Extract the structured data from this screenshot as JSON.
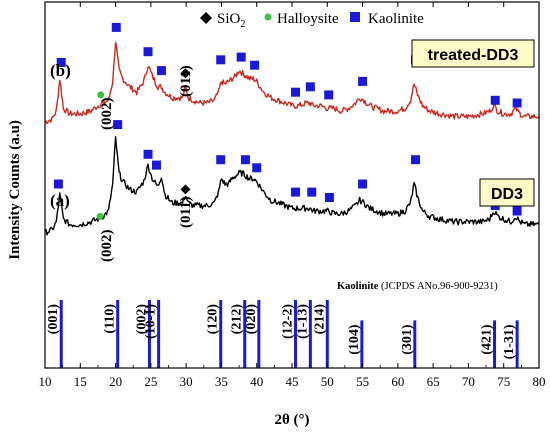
{
  "chart_data": {
    "type": "line",
    "xlabel": "2θ (°)",
    "ylabel": "Intensity Counts (a.u)",
    "xlim": [
      10,
      80
    ],
    "xticks": [
      10,
      15,
      20,
      25,
      30,
      35,
      40,
      45,
      50,
      55,
      60,
      65,
      70,
      75,
      80
    ],
    "y_tick_labels": false,
    "legend": [
      {
        "symbol": "diamond",
        "label": "SiO",
        "subscript": "2",
        "color": "#000000"
      },
      {
        "symbol": "circle",
        "label": "Halloysite",
        "color": "#3cc43c"
      },
      {
        "symbol": "square",
        "label": "Kaolinite",
        "color": "#1a1ad6"
      }
    ],
    "legend_position": "top-center",
    "series": [
      {
        "name": "treated-DD3",
        "panel_label": "(b)",
        "color": "#c8281e",
        "baseline": 0.62,
        "points": [
          [
            10,
            0.63
          ],
          [
            11,
            0.64
          ],
          [
            11.6,
            0.67
          ],
          [
            12.1,
            0.79
          ],
          [
            12.6,
            0.68
          ],
          [
            13.5,
            0.66
          ],
          [
            15,
            0.66
          ],
          [
            16.5,
            0.67
          ],
          [
            17.5,
            0.69
          ],
          [
            18.3,
            0.7
          ],
          [
            19,
            0.71
          ],
          [
            19.6,
            0.78
          ],
          [
            20.0,
            0.93
          ],
          [
            20.5,
            0.82
          ],
          [
            21,
            0.79
          ],
          [
            22,
            0.76
          ],
          [
            23,
            0.74
          ],
          [
            24,
            0.78
          ],
          [
            24.6,
            0.84
          ],
          [
            25.2,
            0.8
          ],
          [
            26,
            0.76
          ],
          [
            26.5,
            0.76
          ],
          [
            27,
            0.74
          ],
          [
            28,
            0.72
          ],
          [
            29,
            0.72
          ],
          [
            29.5,
            0.72
          ],
          [
            29.9,
            0.76
          ],
          [
            30.3,
            0.72
          ],
          [
            31,
            0.71
          ],
          [
            32,
            0.7
          ],
          [
            33,
            0.7
          ],
          [
            34,
            0.71
          ],
          [
            34.6,
            0.74
          ],
          [
            35.0,
            0.78
          ],
          [
            35.5,
            0.77
          ],
          [
            36,
            0.78
          ],
          [
            36.5,
            0.79
          ],
          [
            37,
            0.8
          ],
          [
            37.5,
            0.82
          ],
          [
            38,
            0.81
          ],
          [
            38.5,
            0.8
          ],
          [
            39,
            0.79
          ],
          [
            39.5,
            0.79
          ],
          [
            40,
            0.78
          ],
          [
            41,
            0.74
          ],
          [
            42,
            0.72
          ],
          [
            43,
            0.71
          ],
          [
            44,
            0.7
          ],
          [
            45,
            0.69
          ],
          [
            46,
            0.69
          ],
          [
            47,
            0.7
          ],
          [
            47.5,
            0.7
          ],
          [
            48,
            0.69
          ],
          [
            49,
            0.69
          ],
          [
            50,
            0.68
          ],
          [
            51,
            0.68
          ],
          [
            52,
            0.67
          ],
          [
            53,
            0.68
          ],
          [
            54,
            0.7
          ],
          [
            54.6,
            0.72
          ],
          [
            55.2,
            0.71
          ],
          [
            56,
            0.69
          ],
          [
            57,
            0.68
          ],
          [
            58,
            0.67
          ],
          [
            59,
            0.67
          ],
          [
            60,
            0.67
          ],
          [
            61,
            0.68
          ],
          [
            61.8,
            0.71
          ],
          [
            62.3,
            0.77
          ],
          [
            62.8,
            0.73
          ],
          [
            63.5,
            0.69
          ],
          [
            64.5,
            0.67
          ],
          [
            66,
            0.66
          ],
          [
            68,
            0.65
          ],
          [
            70,
            0.65
          ],
          [
            72,
            0.66
          ],
          [
            73,
            0.67
          ],
          [
            73.6,
            0.69
          ],
          [
            74.2,
            0.67
          ],
          [
            75,
            0.66
          ],
          [
            76,
            0.66
          ],
          [
            76.7,
            0.68
          ],
          [
            77.3,
            0.66
          ],
          [
            78,
            0.65
          ],
          [
            79,
            0.65
          ],
          [
            80,
            0.65
          ]
        ]
      },
      {
        "name": "DD3",
        "panel_label": "(a)",
        "color": "#000000",
        "baseline": 0.2,
        "points": [
          [
            10,
            0.22
          ],
          [
            11,
            0.23
          ],
          [
            11.6,
            0.26
          ],
          [
            12.1,
            0.36
          ],
          [
            12.6,
            0.27
          ],
          [
            13.5,
            0.25
          ],
          [
            15,
            0.25
          ],
          [
            16.5,
            0.26
          ],
          [
            17.5,
            0.27
          ],
          [
            18.2,
            0.28
          ],
          [
            19,
            0.3
          ],
          [
            19.6,
            0.4
          ],
          [
            20.0,
            0.57
          ],
          [
            20.5,
            0.44
          ],
          [
            21,
            0.41
          ],
          [
            22,
            0.38
          ],
          [
            23,
            0.37
          ],
          [
            24,
            0.41
          ],
          [
            24.6,
            0.47
          ],
          [
            25.2,
            0.42
          ],
          [
            26,
            0.39
          ],
          [
            26.5,
            0.43
          ],
          [
            27,
            0.36
          ],
          [
            28,
            0.33
          ],
          [
            29,
            0.33
          ],
          [
            29.5,
            0.33
          ],
          [
            29.9,
            0.36
          ],
          [
            30.3,
            0.33
          ],
          [
            31,
            0.32
          ],
          [
            32,
            0.32
          ],
          [
            33,
            0.32
          ],
          [
            34,
            0.33
          ],
          [
            34.6,
            0.37
          ],
          [
            35.0,
            0.42
          ],
          [
            35.5,
            0.4
          ],
          [
            36,
            0.4
          ],
          [
            36.5,
            0.42
          ],
          [
            37,
            0.43
          ],
          [
            37.5,
            0.44
          ],
          [
            38,
            0.44
          ],
          [
            38.5,
            0.43
          ],
          [
            39,
            0.42
          ],
          [
            39.5,
            0.42
          ],
          [
            40,
            0.41
          ],
          [
            41,
            0.37
          ],
          [
            42,
            0.34
          ],
          [
            43,
            0.33
          ],
          [
            44,
            0.32
          ],
          [
            45,
            0.31
          ],
          [
            46,
            0.31
          ],
          [
            47,
            0.31
          ],
          [
            47.5,
            0.31
          ],
          [
            48,
            0.3
          ],
          [
            49,
            0.3
          ],
          [
            50,
            0.3
          ],
          [
            51,
            0.29
          ],
          [
            52,
            0.29
          ],
          [
            53,
            0.3
          ],
          [
            54,
            0.32
          ],
          [
            54.6,
            0.34
          ],
          [
            55.2,
            0.33
          ],
          [
            56,
            0.31
          ],
          [
            57,
            0.3
          ],
          [
            58,
            0.29
          ],
          [
            59,
            0.29
          ],
          [
            60,
            0.29
          ],
          [
            61,
            0.3
          ],
          [
            61.8,
            0.33
          ],
          [
            62.3,
            0.4
          ],
          [
            62.8,
            0.35
          ],
          [
            63.5,
            0.3
          ],
          [
            64.5,
            0.28
          ],
          [
            66,
            0.27
          ],
          [
            68,
            0.26
          ],
          [
            70,
            0.26
          ],
          [
            72,
            0.26
          ],
          [
            73,
            0.27
          ],
          [
            73.6,
            0.3
          ],
          [
            74.2,
            0.28
          ],
          [
            75,
            0.27
          ],
          [
            76,
            0.26
          ],
          [
            76.7,
            0.28
          ],
          [
            77.3,
            0.26
          ],
          [
            78,
            0.25
          ],
          [
            79,
            0.25
          ],
          [
            80,
            0.25
          ]
        ]
      }
    ],
    "markers": [
      {
        "series": "treated-DD3",
        "type": "square",
        "x": 12.3,
        "y": 0.85
      },
      {
        "series": "treated-DD3",
        "type": "circle",
        "x": 17.9,
        "y": 0.73
      },
      {
        "series": "treated-DD3",
        "type": "square",
        "x": 20.1,
        "y": 0.98
      },
      {
        "series": "treated-DD3",
        "type": "square",
        "x": 24.6,
        "y": 0.89
      },
      {
        "series": "treated-DD3",
        "type": "square",
        "x": 26.5,
        "y": 0.82
      },
      {
        "series": "treated-DD3",
        "type": "diamond",
        "x": 29.9,
        "y": 0.81
      },
      {
        "series": "treated-DD3",
        "type": "square",
        "x": 34.9,
        "y": 0.86
      },
      {
        "series": "treated-DD3",
        "type": "square",
        "x": 37.8,
        "y": 0.87
      },
      {
        "series": "treated-DD3",
        "type": "square",
        "x": 39.7,
        "y": 0.84
      },
      {
        "series": "treated-DD3",
        "type": "square",
        "x": 45.5,
        "y": 0.74
      },
      {
        "series": "treated-DD3",
        "type": "square",
        "x": 47.6,
        "y": 0.76
      },
      {
        "series": "treated-DD3",
        "type": "square",
        "x": 50.2,
        "y": 0.73
      },
      {
        "series": "treated-DD3",
        "type": "square",
        "x": 55.0,
        "y": 0.78
      },
      {
        "series": "treated-DD3",
        "type": "square",
        "x": 62.5,
        "y": 0.86
      },
      {
        "series": "treated-DD3",
        "type": "square",
        "x": 73.8,
        "y": 0.71
      },
      {
        "series": "treated-DD3",
        "type": "square",
        "x": 76.9,
        "y": 0.7
      },
      {
        "series": "DD3",
        "type": "square",
        "x": 11.9,
        "y": 0.4
      },
      {
        "series": "DD3",
        "type": "circle",
        "x": 17.8,
        "y": 0.28
      },
      {
        "series": "DD3",
        "type": "square",
        "x": 20.3,
        "y": 0.62
      },
      {
        "series": "DD3",
        "type": "square",
        "x": 24.6,
        "y": 0.51
      },
      {
        "series": "DD3",
        "type": "square",
        "x": 25.8,
        "y": 0.47
      },
      {
        "series": "DD3",
        "type": "diamond",
        "x": 29.9,
        "y": 0.38
      },
      {
        "series": "DD3",
        "type": "square",
        "x": 34.9,
        "y": 0.49
      },
      {
        "series": "DD3",
        "type": "square",
        "x": 38.4,
        "y": 0.49
      },
      {
        "series": "DD3",
        "type": "square",
        "x": 40.0,
        "y": 0.46
      },
      {
        "series": "DD3",
        "type": "square",
        "x": 45.5,
        "y": 0.37
      },
      {
        "series": "DD3",
        "type": "square",
        "x": 47.8,
        "y": 0.37
      },
      {
        "series": "DD3",
        "type": "square",
        "x": 50.3,
        "y": 0.35
      },
      {
        "series": "DD3",
        "type": "square",
        "x": 55.0,
        "y": 0.4
      },
      {
        "series": "DD3",
        "type": "square",
        "x": 62.5,
        "y": 0.49
      },
      {
        "series": "DD3",
        "type": "square",
        "x": 73.8,
        "y": 0.32
      },
      {
        "series": "DD3",
        "type": "square",
        "x": 76.9,
        "y": 0.3
      }
    ],
    "peak_labels": [
      {
        "series": "treated-DD3",
        "text": "(002)",
        "x": 18.8
      },
      {
        "series": "treated-DD3",
        "text": "(011)",
        "x": 30.0
      },
      {
        "series": "DD3",
        "text": "(002)",
        "x": 18.8
      },
      {
        "series": "DD3",
        "text": "(011)",
        "x": 30.0
      }
    ],
    "sample_boxes": [
      {
        "text": "treated-DD3",
        "background": "#fffbc8"
      },
      {
        "text": "DD3",
        "background": "#fffbc8"
      }
    ],
    "reference": {
      "title": "Kaolinite",
      "source": "(JCPDS ANo.96-900-9231)",
      "color": "#1a1ad6",
      "lines": [
        {
          "x": 12.3,
          "height": 1.0,
          "hkl": "(001)"
        },
        {
          "x": 20.3,
          "height": 1.0,
          "hkl": "(110)"
        },
        {
          "x": 24.8,
          "height": 1.0,
          "hkl": "(002)"
        },
        {
          "x": 26.1,
          "height": 1.0,
          "hkl": "(10-1)"
        },
        {
          "x": 34.9,
          "height": 1.0,
          "hkl": "(120)"
        },
        {
          "x": 38.3,
          "height": 1.0,
          "hkl": "(212)"
        },
        {
          "x": 40.3,
          "height": 1.0,
          "hkl": "(020)"
        },
        {
          "x": 45.5,
          "height": 1.0,
          "hkl": "(12-2)"
        },
        {
          "x": 47.6,
          "height": 1.0,
          "hkl": "(1-13)"
        },
        {
          "x": 50.0,
          "height": 1.0,
          "hkl": "(214)"
        },
        {
          "x": 54.9,
          "height": 0.7,
          "hkl": "(104)"
        },
        {
          "x": 62.4,
          "height": 0.7,
          "hkl": "(301)"
        },
        {
          "x": 73.7,
          "height": 0.7,
          "hkl": "(421)"
        },
        {
          "x": 76.9,
          "height": 0.7,
          "hkl": "(1-31)"
        }
      ]
    }
  }
}
